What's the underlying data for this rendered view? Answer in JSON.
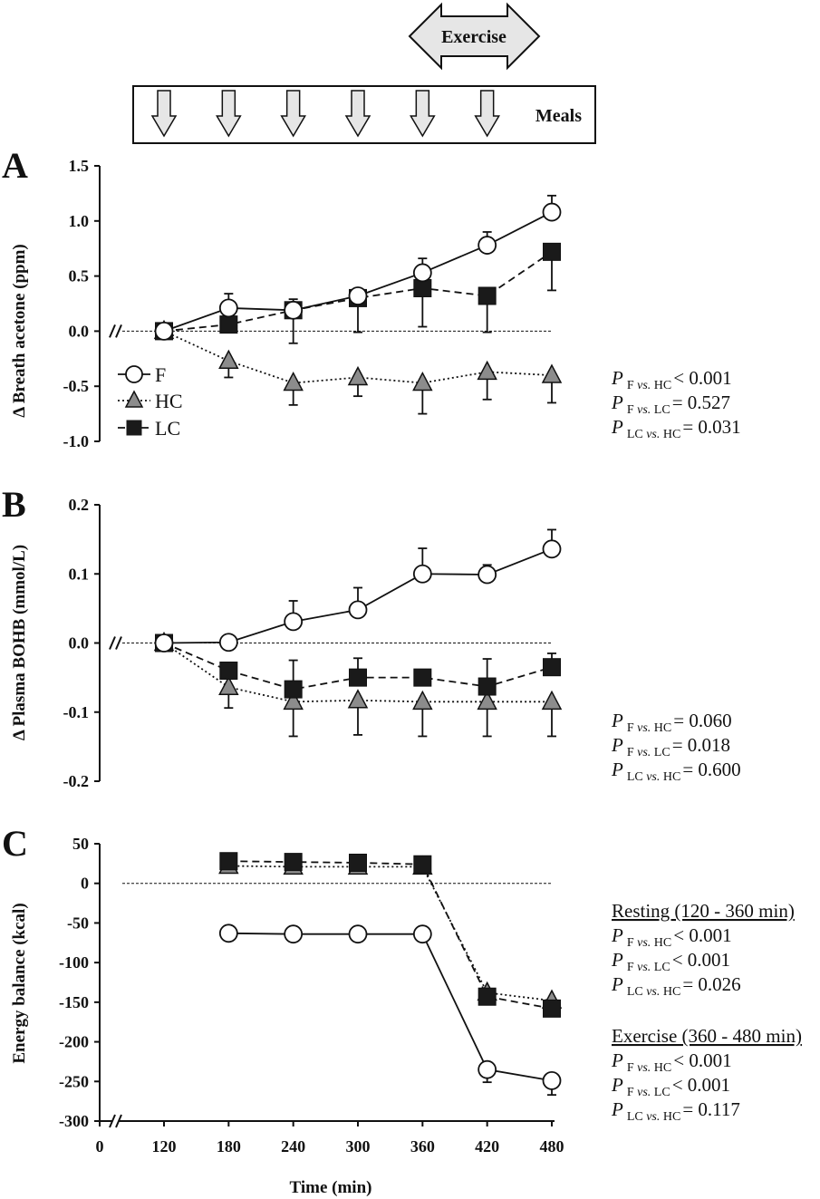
{
  "banner": {
    "exercise_label": "Exercise",
    "meals_label": "Meals",
    "meal_times": [
      120,
      180,
      240,
      300,
      360,
      420
    ]
  },
  "legend": {
    "items": [
      {
        "key": "F",
        "label": "F",
        "marker": "circle-open",
        "line": "solid"
      },
      {
        "key": "HC",
        "label": "HC",
        "marker": "triangle-gray",
        "line": "dotted"
      },
      {
        "key": "LC",
        "label": "LC",
        "marker": "square-black",
        "line": "dashed"
      }
    ]
  },
  "xaxis": {
    "label": "Time (min)",
    "ticks": [
      "0",
      "120",
      "180",
      "240",
      "300",
      "360",
      "420",
      "480"
    ]
  },
  "colors": {
    "F_fill": "#ffffff",
    "HC_fill": "#8c8c8c",
    "LC_fill": "#1a1a1a",
    "line": "#111111",
    "banner_fill": "#e6e6e6"
  },
  "chart_data": [
    {
      "type": "line",
      "panel": "A",
      "ylabel": "Δ Breath acetone (ppm)",
      "ylim": [
        -1.0,
        1.5
      ],
      "yticks": [
        "1.5",
        "1.0",
        "0.5",
        "0.0",
        "-0.5",
        "-1.0"
      ],
      "x": [
        120,
        180,
        240,
        300,
        360,
        420,
        480
      ],
      "series": [
        {
          "name": "F",
          "values": [
            0.0,
            0.21,
            0.19,
            0.32,
            0.53,
            0.78,
            1.08
          ],
          "err": [
            0,
            0.13,
            0.1,
            0.06,
            0.13,
            0.12,
            0.15
          ],
          "err_dir": "up"
        },
        {
          "name": "HC",
          "values": [
            0.0,
            -0.27,
            -0.47,
            -0.42,
            -0.47,
            -0.37,
            -0.4
          ],
          "err": [
            0,
            0.15,
            0.2,
            0.17,
            0.28,
            0.25,
            0.25
          ],
          "err_dir": "down"
        },
        {
          "name": "LC",
          "values": [
            0.0,
            0.06,
            0.19,
            0.3,
            0.39,
            0.32,
            0.72
          ],
          "err": [
            0,
            0,
            0.3,
            0.31,
            0.35,
            0.33,
            0.35
          ],
          "err_dir": "down"
        }
      ],
      "stats": [
        {
          "p": "P",
          "sub": "F vs. HC",
          "text": "< 0.001"
        },
        {
          "p": "P",
          "sub": "F vs. LC",
          "text": "= 0.527"
        },
        {
          "p": "P",
          "sub": "LC vs. HC",
          "text": "= 0.031"
        }
      ]
    },
    {
      "type": "line",
      "panel": "B",
      "ylabel": "Δ Plasma BOHB (mmol/L)",
      "ylim": [
        -0.2,
        0.2
      ],
      "yticks": [
        "0.2",
        "0.1",
        "0.0",
        "-0.1",
        "-0.2"
      ],
      "x": [
        120,
        180,
        240,
        300,
        360,
        420,
        480
      ],
      "series": [
        {
          "name": "F",
          "values": [
            0.0,
            0.001,
            0.031,
            0.048,
            0.1,
            0.099,
            0.136
          ],
          "err": [
            0,
            0,
            0.03,
            0.032,
            0.037,
            0.014,
            0.028
          ],
          "err_dir": "up"
        },
        {
          "name": "HC",
          "values": [
            0.0,
            -0.064,
            -0.085,
            -0.083,
            -0.085,
            -0.085,
            -0.085
          ],
          "err": [
            0,
            0.03,
            0.05,
            0.05,
            0.05,
            0.05,
            0.05
          ],
          "err_dir": "down"
        },
        {
          "name": "LC",
          "values": [
            0.0,
            -0.04,
            -0.067,
            -0.05,
            -0.05,
            -0.063,
            -0.035
          ],
          "err": [
            0,
            0,
            0.042,
            0.028,
            0,
            0.04,
            0.02
          ],
          "err_dir": "up"
        }
      ],
      "stats": [
        {
          "p": "P",
          "sub": "F vs. HC",
          "text": "= 0.060"
        },
        {
          "p": "P",
          "sub": "F vs. LC",
          "text": "= 0.018"
        },
        {
          "p": "P",
          "sub": "LC vs. HC",
          "text": "= 0.600"
        }
      ]
    },
    {
      "type": "line",
      "panel": "C",
      "ylabel": "Energy balance (kcal)",
      "ylim": [
        -300,
        50
      ],
      "yticks": [
        "50",
        "0",
        "-50",
        "-100",
        "-150",
        "-200",
        "-250",
        "-300"
      ],
      "x": [
        180,
        240,
        300,
        360,
        420,
        480
      ],
      "series": [
        {
          "name": "F",
          "values": [
            -63,
            -64,
            -64,
            -64,
            -235,
            -249
          ],
          "err": [
            0,
            0,
            0,
            0,
            16,
            18
          ],
          "err_dir": "down"
        },
        {
          "name": "HC",
          "values": [
            22,
            21,
            21,
            21,
            -138,
            -148
          ],
          "err": [
            0,
            0,
            0,
            0,
            0,
            0
          ],
          "err_dir": "down"
        },
        {
          "name": "LC",
          "values": [
            28,
            27,
            26,
            24,
            -143,
            -158
          ],
          "err": [
            0,
            0,
            0,
            0,
            0,
            0
          ],
          "err_dir": "down"
        }
      ],
      "stats_groups": [
        {
          "heading": "Resting (120 - 360 min)",
          "lines": [
            {
              "p": "P",
              "sub": "F vs. HC",
              "text": "< 0.001"
            },
            {
              "p": "P",
              "sub": "F vs. LC",
              "text": "< 0.001"
            },
            {
              "p": "P",
              "sub": "LC vs. HC",
              "text": "= 0.026"
            }
          ]
        },
        {
          "heading": "Exercise (360 - 480 min)",
          "lines": [
            {
              "p": "P",
              "sub": "F vs. HC",
              "text": "< 0.001"
            },
            {
              "p": "P",
              "sub": "F vs. LC",
              "text": "< 0.001"
            },
            {
              "p": "P",
              "sub": "LC vs. HC",
              "text": "= 0.117"
            }
          ]
        }
      ]
    }
  ]
}
